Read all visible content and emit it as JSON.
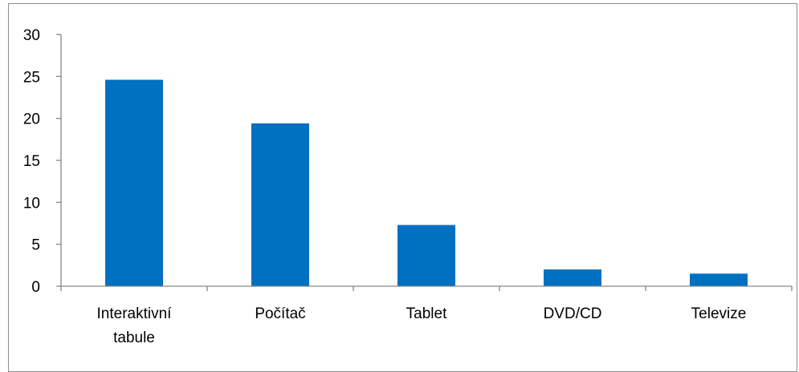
{
  "chart_data": {
    "type": "bar",
    "categories": [
      [
        "Interaktivní",
        "tabule"
      ],
      [
        "Počítač"
      ],
      [
        "Tablet"
      ],
      [
        "DVD/CD"
      ],
      [
        "Televize"
      ]
    ],
    "values": [
      24.6,
      19.4,
      7.3,
      2.0,
      1.5
    ],
    "ylim": [
      0,
      30
    ],
    "yticks": [
      0,
      5,
      10,
      15,
      20,
      25,
      30
    ],
    "bar_color": "#0070C0",
    "axis_color": "#868686",
    "grid": false,
    "legend": "none"
  }
}
